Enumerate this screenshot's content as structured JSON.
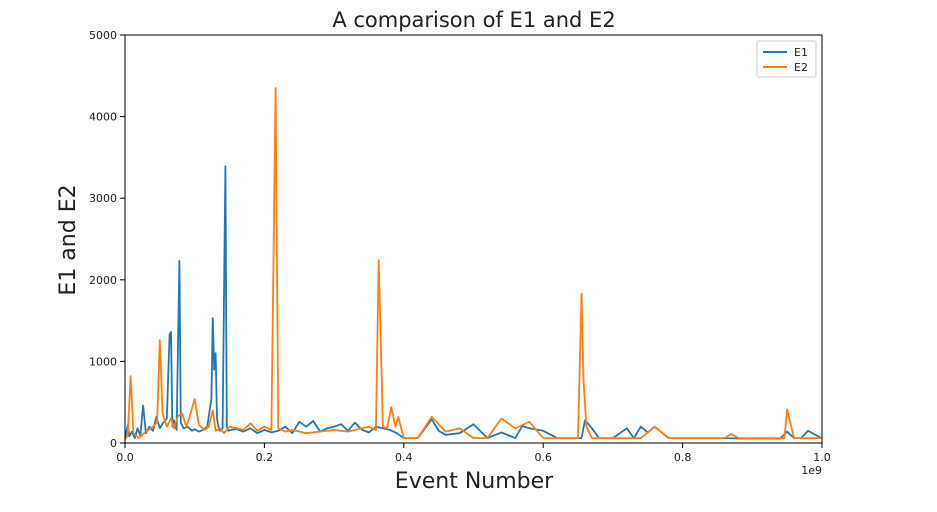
{
  "chart_data": {
    "type": "line",
    "title": "A comparison of E1 and E2",
    "xlabel": "Event Number",
    "ylabel": "E1 and E2",
    "x_offset_label": "1e9",
    "xlim": [
      0,
      1.0
    ],
    "ylim": [
      0,
      5000
    ],
    "x_ticks": [
      0.0,
      0.2,
      0.4,
      0.6,
      0.8,
      1.0
    ],
    "x_tick_labels": [
      "0.0",
      "0.2",
      "0.4",
      "0.6",
      "0.8",
      "1.0"
    ],
    "y_ticks": [
      0,
      1000,
      2000,
      3000,
      4000,
      5000
    ],
    "y_tick_labels": [
      "0",
      "1000",
      "2000",
      "3000",
      "4000",
      "5000"
    ],
    "grid": false,
    "legend_position": "top-right",
    "series": [
      {
        "name": "E1",
        "color": "#1f77b4",
        "x": [
          0.0,
          0.004,
          0.006,
          0.01,
          0.014,
          0.018,
          0.022,
          0.026,
          0.03,
          0.035,
          0.04,
          0.045,
          0.05,
          0.055,
          0.06,
          0.064,
          0.066,
          0.068,
          0.07,
          0.074,
          0.078,
          0.08,
          0.084,
          0.09,
          0.096,
          0.1,
          0.106,
          0.112,
          0.118,
          0.124,
          0.126,
          0.128,
          0.13,
          0.132,
          0.134,
          0.136,
          0.14,
          0.144,
          0.146,
          0.148,
          0.152,
          0.16,
          0.17,
          0.18,
          0.19,
          0.2,
          0.21,
          0.22,
          0.23,
          0.24,
          0.25,
          0.26,
          0.27,
          0.28,
          0.29,
          0.3,
          0.31,
          0.32,
          0.33,
          0.34,
          0.35,
          0.36,
          0.37,
          0.38,
          0.39,
          0.4,
          0.42,
          0.44,
          0.45,
          0.46,
          0.48,
          0.5,
          0.52,
          0.54,
          0.56,
          0.57,
          0.58,
          0.6,
          0.62,
          0.64,
          0.655,
          0.66,
          0.67,
          0.68,
          0.7,
          0.72,
          0.73,
          0.74,
          0.75,
          0.76,
          0.78,
          0.8,
          0.82,
          0.84,
          0.86,
          0.88,
          0.9,
          0.92,
          0.94,
          0.95,
          0.96,
          0.97,
          0.98,
          1.0
        ],
        "values": [
          60,
          220,
          80,
          140,
          60,
          180,
          90,
          460,
          120,
          200,
          150,
          320,
          180,
          250,
          300,
          1330,
          1360,
          200,
          280,
          160,
          2230,
          250,
          180,
          200,
          150,
          170,
          140,
          160,
          200,
          540,
          1530,
          900,
          1100,
          300,
          200,
          150,
          180,
          3390,
          200,
          150,
          160,
          170,
          140,
          180,
          120,
          160,
          130,
          150,
          200,
          120,
          260,
          200,
          270,
          140,
          180,
          200,
          230,
          150,
          250,
          160,
          130,
          200,
          180,
          160,
          120,
          60,
          60,
          290,
          150,
          100,
          120,
          230,
          60,
          130,
          60,
          210,
          180,
          150,
          60,
          60,
          60,
          280,
          180,
          60,
          60,
          180,
          60,
          200,
          130,
          200,
          60,
          60,
          60,
          60,
          60,
          55,
          55,
          55,
          55,
          140,
          60,
          60,
          150,
          55
        ]
      },
      {
        "name": "E2",
        "color": "#ff7f0e",
        "x": [
          0.0,
          0.004,
          0.008,
          0.012,
          0.02,
          0.03,
          0.04,
          0.046,
          0.05,
          0.054,
          0.06,
          0.066,
          0.07,
          0.076,
          0.082,
          0.088,
          0.094,
          0.1,
          0.106,
          0.114,
          0.12,
          0.126,
          0.13,
          0.136,
          0.142,
          0.15,
          0.16,
          0.17,
          0.18,
          0.19,
          0.2,
          0.21,
          0.216,
          0.22,
          0.23,
          0.24,
          0.26,
          0.28,
          0.3,
          0.32,
          0.34,
          0.35,
          0.36,
          0.364,
          0.37,
          0.376,
          0.382,
          0.388,
          0.392,
          0.4,
          0.42,
          0.44,
          0.46,
          0.48,
          0.5,
          0.52,
          0.54,
          0.56,
          0.58,
          0.6,
          0.62,
          0.64,
          0.65,
          0.655,
          0.658,
          0.662,
          0.67,
          0.68,
          0.7,
          0.72,
          0.74,
          0.76,
          0.78,
          0.8,
          0.82,
          0.84,
          0.86,
          0.87,
          0.88,
          0.9,
          0.92,
          0.94,
          0.946,
          0.95,
          0.96,
          0.97,
          0.98,
          1.0
        ],
        "values": [
          40,
          100,
          820,
          120,
          60,
          140,
          200,
          250,
          1260,
          360,
          200,
          300,
          180,
          330,
          360,
          200,
          360,
          540,
          220,
          160,
          200,
          400,
          150,
          180,
          120,
          200,
          180,
          160,
          240,
          150,
          200,
          160,
          4350,
          180,
          140,
          160,
          120,
          140,
          160,
          140,
          180,
          200,
          160,
          2240,
          200,
          180,
          440,
          200,
          320,
          60,
          60,
          320,
          140,
          180,
          60,
          60,
          300,
          180,
          260,
          60,
          60,
          60,
          60,
          1830,
          750,
          200,
          60,
          60,
          60,
          60,
          60,
          200,
          60,
          60,
          60,
          60,
          60,
          110,
          60,
          60,
          60,
          60,
          60,
          410,
          60,
          60,
          60,
          60
        ]
      }
    ]
  }
}
